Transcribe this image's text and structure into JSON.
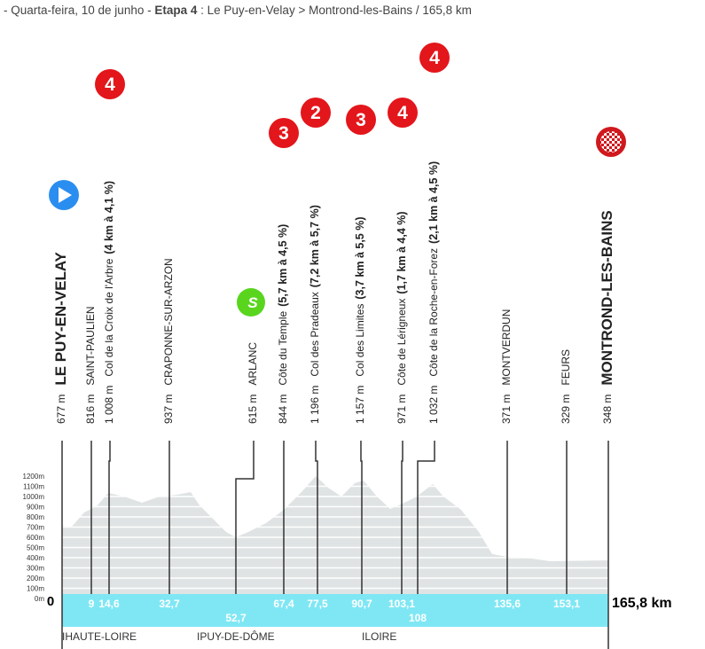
{
  "header": {
    "date": "- Quarta-feira, 10 de junho - ",
    "stage": "Etapa 4",
    "route": " : Le Puy-en-Velay > Montrond-les-Bains / 165,8 km"
  },
  "profile": {
    "altitude_labels": [
      "1200m",
      "1100m",
      "1000m",
      "900m",
      "800m",
      "700m",
      "600m",
      "500m",
      "400m",
      "300m",
      "200m",
      "100m",
      "0m"
    ],
    "origin": "0",
    "finish_distance": "165,8 km",
    "departments": [
      "IHAUTE-LOIRE",
      "IPUY-DE-DÔME",
      "ILOIRE"
    ]
  },
  "waypoints": [
    {
      "altitude": "677 m",
      "name": "LE PUY-EN-VELAY",
      "marker": "start"
    },
    {
      "altitude": "816 m",
      "name": "SAINT-PAULIEN",
      "km": "9"
    },
    {
      "altitude": "1 008 m",
      "name": "Col de la Croix de l'Arbre",
      "climb": "(4 km à 4,1 %)",
      "category": "4",
      "km": "14,6"
    },
    {
      "altitude": "937 m",
      "name": "CRAPONNE-SUR-ARZON",
      "km": "32,7"
    },
    {
      "altitude": "615 m",
      "name": "ARLANC",
      "sprint": "S",
      "km": "52,7"
    },
    {
      "altitude": "844 m",
      "name": "Côte du Temple",
      "climb": "(5,7 km à 4,5 %)",
      "category": "3",
      "km": "67,4"
    },
    {
      "altitude": "1 196 m",
      "name": "Col des Pradeaux",
      "climb": "(7,2 km à 5,7 %)",
      "category": "2",
      "km": "77,5"
    },
    {
      "altitude": "1 157 m",
      "name": "Col des Limites",
      "climb": "(3,7 km à 5,5 %)",
      "category": "3",
      "km": "90,7"
    },
    {
      "altitude": "971 m",
      "name": "Côte de Lérigneux",
      "climb": "(1,7 km à 4,4 %)",
      "category": "4",
      "km": "103,1"
    },
    {
      "altitude": "1 032 m",
      "name": "Côte de la Roche-en-Forez",
      "climb": "(2,1 km à 4,5 %)",
      "category": "4",
      "km": "108"
    },
    {
      "altitude": "371 m",
      "name": "MONTVERDUN",
      "km": "135,6"
    },
    {
      "altitude": "329 m",
      "name": "FEURS",
      "km": "153,1"
    },
    {
      "altitude": "348 m",
      "name": "MONTROND-LES-BAINS",
      "marker": "finish"
    }
  ]
}
